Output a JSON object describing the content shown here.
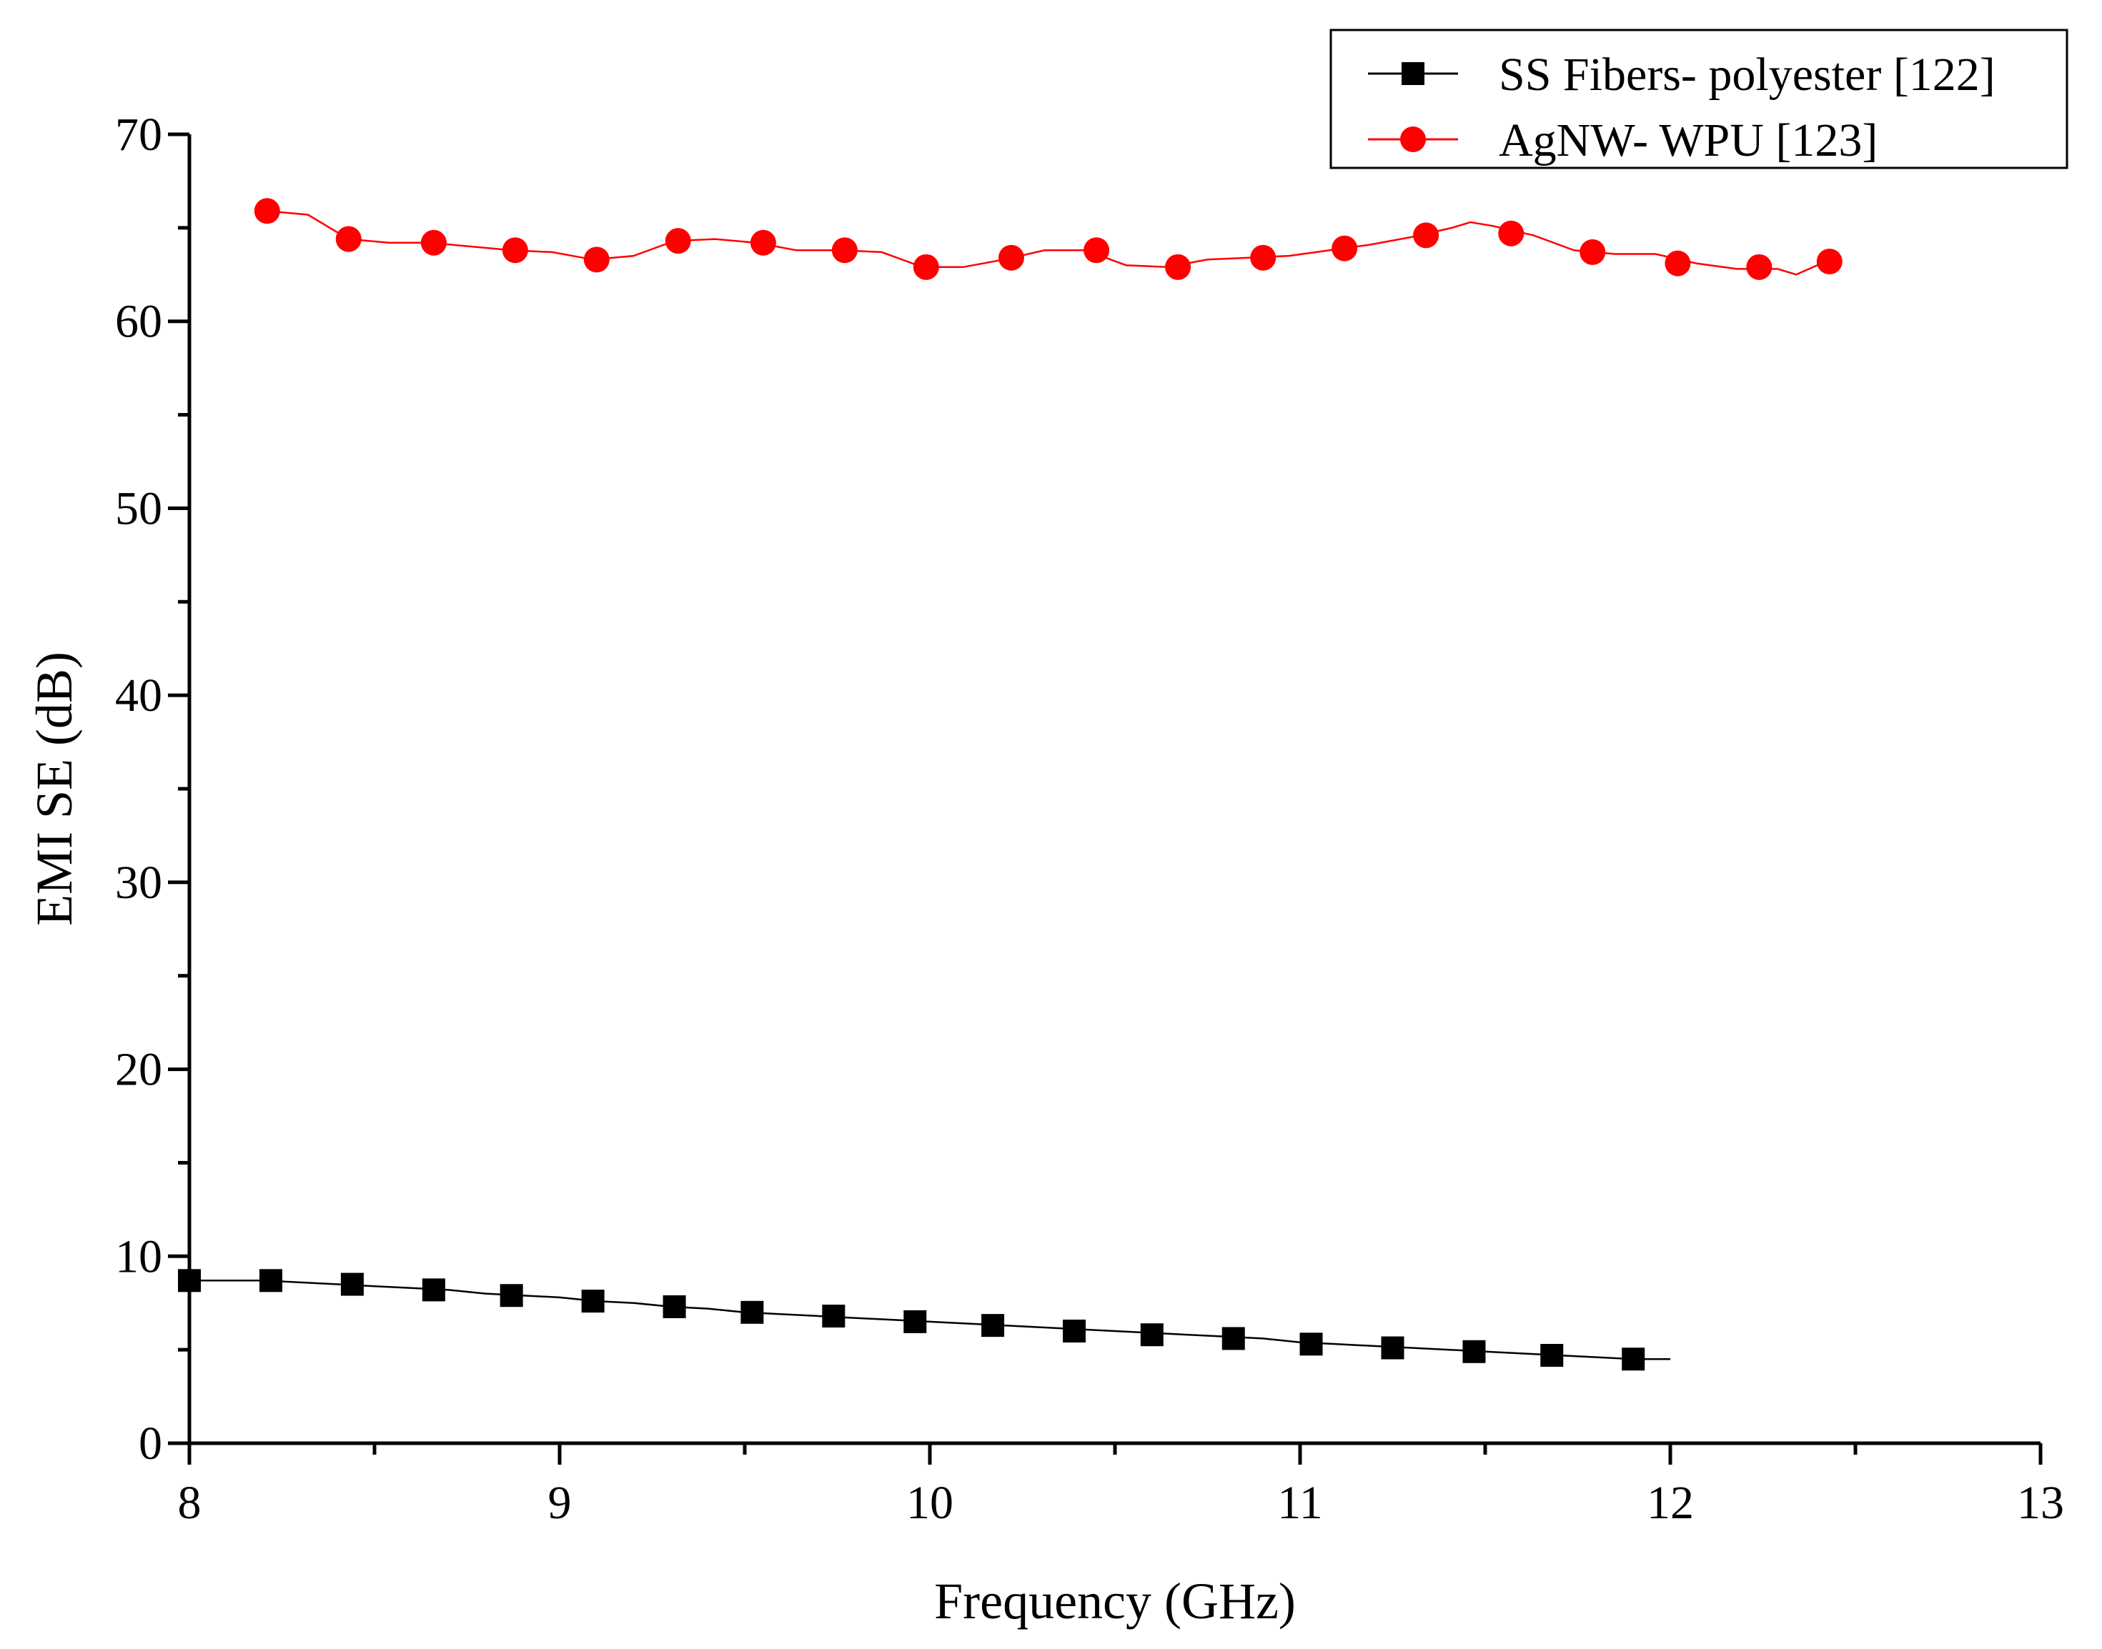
{
  "chart_data": {
    "type": "line",
    "title": "",
    "xlabel": "Frequency (GHz)",
    "ylabel": "EMI SE (dB)",
    "xlim": [
      8,
      13
    ],
    "ylim": [
      0,
      70
    ],
    "xticks": [
      8,
      9,
      10,
      11,
      12,
      13
    ],
    "yticks": [
      0,
      10,
      20,
      30,
      40,
      50,
      60,
      70
    ],
    "grid": false,
    "legend_position": "top-right",
    "series": [
      {
        "name": "SS Fibers- polyester [122]",
        "color": "#000000",
        "marker": "square",
        "line_x": [
          8.0,
          8.1,
          8.2,
          8.3,
          8.4,
          8.5,
          8.6,
          8.7,
          8.8,
          8.9,
          9.0,
          9.1,
          9.2,
          9.3,
          9.4,
          9.5,
          9.6,
          9.7,
          9.8,
          9.9,
          10.0,
          10.1,
          10.2,
          10.3,
          10.4,
          10.5,
          10.6,
          10.7,
          10.8,
          10.9,
          11.0,
          11.1,
          11.2,
          11.3,
          11.4,
          11.5,
          11.6,
          11.7,
          11.8,
          11.9,
          12.0
        ],
        "line_y": [
          8.7,
          8.7,
          8.7,
          8.6,
          8.5,
          8.4,
          8.3,
          8.2,
          8.0,
          7.9,
          7.8,
          7.6,
          7.5,
          7.3,
          7.2,
          7.0,
          6.9,
          6.8,
          6.7,
          6.6,
          6.5,
          6.4,
          6.3,
          6.2,
          6.1,
          6.0,
          5.9,
          5.8,
          5.7,
          5.6,
          5.4,
          5.3,
          5.2,
          5.1,
          5.0,
          4.9,
          4.8,
          4.7,
          4.6,
          4.5,
          4.5
        ],
        "x": [
          8.0,
          8.22,
          8.44,
          8.66,
          8.87,
          9.09,
          9.31,
          9.52,
          9.74,
          9.96,
          10.17,
          10.39,
          10.6,
          10.82,
          11.03,
          11.25,
          11.47,
          11.68,
          11.9
        ],
        "y": [
          8.7,
          8.7,
          8.5,
          8.2,
          7.9,
          7.6,
          7.3,
          7.0,
          6.8,
          6.5,
          6.3,
          6.0,
          5.8,
          5.6,
          5.3,
          5.1,
          4.9,
          4.7,
          4.5
        ]
      },
      {
        "name": "AgNW- WPU [123]",
        "color": "#ff0000",
        "marker": "circle",
        "line_x": [
          8.21,
          8.32,
          8.43,
          8.54,
          8.65,
          8.76,
          8.87,
          8.98,
          9.09,
          9.2,
          9.31,
          9.42,
          9.53,
          9.64,
          9.76,
          9.87,
          9.98,
          10.09,
          10.2,
          10.31,
          10.42,
          10.53,
          10.64,
          10.75,
          10.86,
          10.97,
          11.08,
          11.19,
          11.3,
          11.41,
          11.46,
          11.52,
          11.63,
          11.74,
          11.85,
          11.96,
          12.07,
          12.18,
          12.29,
          12.34,
          12.42
        ],
        "line_y": [
          65.9,
          65.7,
          64.4,
          64.2,
          64.2,
          64.0,
          63.8,
          63.7,
          63.3,
          63.5,
          64.3,
          64.4,
          64.2,
          63.8,
          63.8,
          63.7,
          62.9,
          62.9,
          63.3,
          63.8,
          63.8,
          63.0,
          62.9,
          63.3,
          63.4,
          63.5,
          63.8,
          64.1,
          64.5,
          65.0,
          65.3,
          65.1,
          64.6,
          63.8,
          63.6,
          63.6,
          63.1,
          62.8,
          62.8,
          62.5,
          63.2
        ],
        "x": [
          8.21,
          8.43,
          8.66,
          8.88,
          9.1,
          9.32,
          9.55,
          9.77,
          9.99,
          10.22,
          10.45,
          10.67,
          10.9,
          11.12,
          11.34,
          11.57,
          11.79,
          12.02,
          12.24,
          12.43
        ],
        "y": [
          65.9,
          64.4,
          64.2,
          63.8,
          63.3,
          64.3,
          64.2,
          63.8,
          62.9,
          63.4,
          63.8,
          62.9,
          63.4,
          63.9,
          64.6,
          64.7,
          63.7,
          63.1,
          62.9,
          63.2
        ]
      }
    ]
  }
}
